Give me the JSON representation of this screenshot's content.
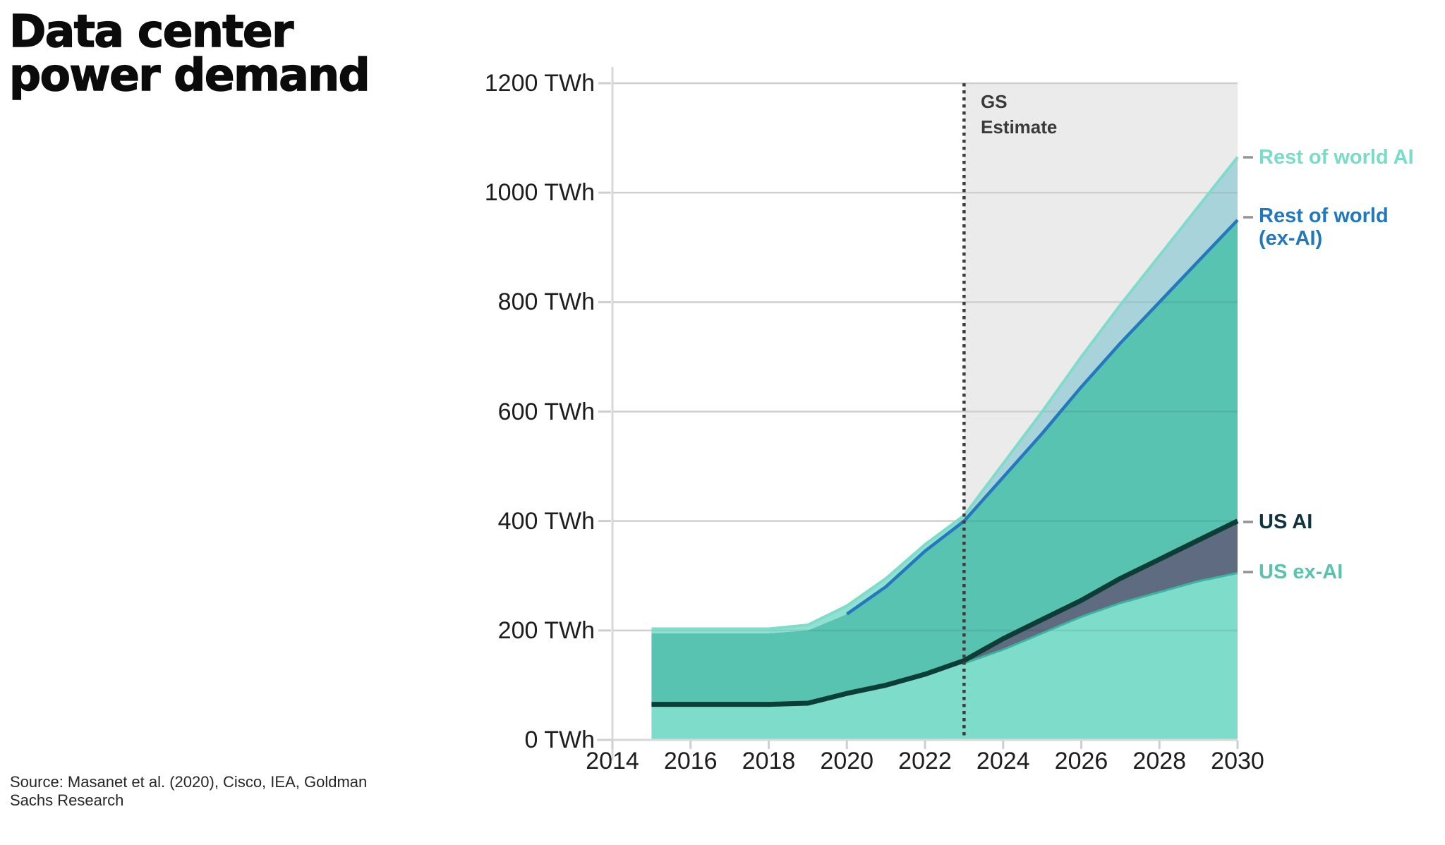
{
  "title": "Data center\npower demand",
  "source": "Source: Masanet et al. (2020), Cisco, IEA, Goldman\nSachs Research",
  "annotation": {
    "gs_estimate": "GS\nEstimate"
  },
  "y_axis": {
    "tick_labels": [
      "1200 TWh",
      "1000 TWh",
      "800 TWh",
      "600 TWh",
      "400 TWh",
      "200 TWh",
      "0 TWh"
    ]
  },
  "x_axis": {
    "tick_labels": [
      "2014",
      "2016",
      "2018",
      "2020",
      "2022",
      "2024",
      "2026",
      "2028",
      "2030"
    ]
  },
  "legend": [
    {
      "label": "Rest of world AI",
      "color": "#79dcc8"
    },
    {
      "label": "Rest of world\n(ex-AI)",
      "color": "#2277bd"
    },
    {
      "label": "US AI",
      "color": "#0e3440"
    },
    {
      "label": "US ex-AI",
      "color": "#59c3ae"
    }
  ],
  "chart_data": {
    "type": "area",
    "title": "Data center power demand",
    "unit": "TWh",
    "stacked": true,
    "x": [
      2015,
      2016,
      2017,
      2018,
      2019,
      2020,
      2021,
      2022,
      2023,
      2024,
      2025,
      2026,
      2027,
      2028,
      2029,
      2030
    ],
    "xlim": [
      2014,
      2030
    ],
    "ylim": [
      0,
      1200
    ],
    "grid": true,
    "forecast_start": 2023,
    "forecast_label": "GS Estimate",
    "series": [
      {
        "name": "US ex-AI",
        "values": [
          65,
          65,
          65,
          65,
          67,
          85,
          100,
          120,
          140,
          165,
          195,
          225,
          250,
          270,
          290,
          305
        ],
        "fill": "#7ddcca",
        "line_color": "#3eb3a0"
      },
      {
        "name": "US AI",
        "values": [
          0,
          0,
          0,
          0,
          0,
          0,
          0,
          0,
          5,
          20,
          25,
          30,
          45,
          60,
          75,
          95
        ],
        "fill": "#5f6b80",
        "line_color": "#0c3e37"
      },
      {
        "name": "Rest of world (ex-AI)",
        "values": [
          130,
          130,
          130,
          130,
          133,
          145,
          180,
          225,
          255,
          295,
          340,
          390,
          430,
          470,
          510,
          550
        ],
        "fill": "#58c3b0",
        "line_color": "#2478bd"
      },
      {
        "name": "Rest of world AI",
        "values": [
          8,
          8,
          8,
          8,
          10,
          15,
          15,
          12,
          10,
          25,
          40,
          55,
          70,
          85,
          100,
          115
        ],
        "fill": "#8fe1d1",
        "fill_forecast": "#a9d3da",
        "line_color": "#7edcc9"
      }
    ],
    "colors": {
      "forecast_bg": "#ebebeb",
      "gridline": "#dfdfdf",
      "gridline_overlay": "rgba(0,0,0,0.07)",
      "axis": "#d8d8d8",
      "tick": "#cfcfcf",
      "forecast_divider": "#3d3d3d",
      "legend_dash": "#949494"
    }
  }
}
